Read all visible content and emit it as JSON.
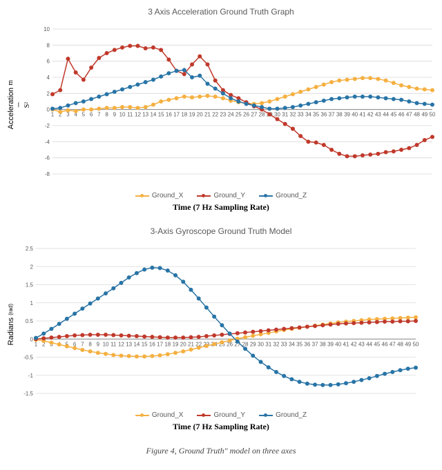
{
  "chart1": {
    "type": "line",
    "title": "3 Axis Acceleration Ground Truth Graph",
    "ylabel_html": "Acceleration <span style='font-family:serif'><sup>m</sup>&frasl;<sub>S<sup>2</sup></sub></span>",
    "ylabel": "Acceleration m/S²",
    "xlabel": "Time (7 Hz Sampling Rate)",
    "ylim": [
      -8,
      10
    ],
    "ytick_step": 2,
    "x_values": [
      1,
      2,
      3,
      4,
      5,
      6,
      7,
      8,
      9,
      10,
      11,
      12,
      13,
      14,
      15,
      16,
      17,
      18,
      19,
      20,
      21,
      22,
      23,
      24,
      25,
      26,
      27,
      28,
      29,
      30,
      31,
      32,
      33,
      34,
      35,
      36,
      37,
      38,
      39,
      40,
      41,
      42,
      43,
      44,
      45,
      46,
      47,
      48,
      49,
      50
    ],
    "series": [
      {
        "name": "Ground_X",
        "color": "#f5b041",
        "values": [
          0.0,
          -0.3,
          -0.1,
          -0.2,
          0.0,
          0.0,
          0.1,
          0.2,
          0.2,
          0.3,
          0.3,
          0.2,
          0.3,
          0.6,
          1.0,
          1.2,
          1.4,
          1.6,
          1.5,
          1.6,
          1.7,
          1.6,
          1.4,
          1.1,
          0.9,
          0.8,
          0.7,
          0.8,
          1.0,
          1.3,
          1.6,
          1.9,
          2.2,
          2.5,
          2.8,
          3.1,
          3.4,
          3.6,
          3.7,
          3.8,
          3.9,
          3.9,
          3.8,
          3.6,
          3.3,
          3.0,
          2.8,
          2.6,
          2.5,
          2.4
        ]
      },
      {
        "name": "Ground_Y",
        "color": "#c0392b",
        "values": [
          1.9,
          2.4,
          6.3,
          4.6,
          3.7,
          5.2,
          6.4,
          7.0,
          7.4,
          7.7,
          7.9,
          7.9,
          7.6,
          7.7,
          7.4,
          6.2,
          4.8,
          4.4,
          5.6,
          6.6,
          5.6,
          3.6,
          2.4,
          1.8,
          1.4,
          0.9,
          0.4,
          0.0,
          -0.6,
          -1.2,
          -1.8,
          -2.4,
          -3.3,
          -4.0,
          -4.1,
          -4.4,
          -5.0,
          -5.5,
          -5.8,
          -5.8,
          -5.7,
          -5.6,
          -5.5,
          -5.3,
          -5.2,
          -5.0,
          -4.8,
          -4.4,
          -3.8,
          -3.4
        ]
      },
      {
        "name": "Ground_Z",
        "color": "#2874a6",
        "values": [
          0.1,
          0.2,
          0.5,
          0.8,
          1.0,
          1.3,
          1.6,
          1.9,
          2.2,
          2.5,
          2.8,
          3.1,
          3.4,
          3.7,
          4.1,
          4.5,
          4.8,
          4.9,
          4.0,
          4.2,
          3.2,
          2.6,
          2.0,
          1.4,
          1.0,
          0.7,
          0.5,
          0.3,
          0.1,
          0.1,
          0.2,
          0.3,
          0.5,
          0.7,
          0.9,
          1.1,
          1.3,
          1.4,
          1.5,
          1.6,
          1.6,
          1.6,
          1.5,
          1.4,
          1.3,
          1.2,
          1.0,
          0.8,
          0.7,
          0.6
        ]
      }
    ],
    "marker_size": 3,
    "line_width": 1.5,
    "background_color": "#ffffff",
    "grid_color": "#d9d9d9",
    "axis_font_size": 8,
    "title_fontsize": 12,
    "label_fontsize": 11
  },
  "chart2": {
    "type": "line",
    "title": "3-Axis Gyroscope Ground Truth Model",
    "ylabel": "Radians (rad)",
    "xlabel": "Time (7 Hz Sampling Rate)",
    "ylim": [
      -1.5,
      2.5
    ],
    "ytick_step": 0.5,
    "x_values": [
      1,
      2,
      3,
      4,
      5,
      6,
      7,
      8,
      9,
      10,
      11,
      12,
      13,
      14,
      15,
      16,
      17,
      18,
      19,
      20,
      21,
      22,
      23,
      24,
      25,
      26,
      27,
      28,
      29,
      30,
      31,
      32,
      33,
      34,
      35,
      36,
      37,
      38,
      39,
      40,
      41,
      42,
      43,
      44,
      45,
      46,
      47,
      48,
      49,
      50
    ],
    "series": [
      {
        "name": "Ground_X",
        "color": "#f5b041",
        "values": [
          -0.02,
          -0.05,
          -0.1,
          -0.15,
          -0.2,
          -0.25,
          -0.3,
          -0.34,
          -0.38,
          -0.41,
          -0.44,
          -0.46,
          -0.47,
          -0.48,
          -0.48,
          -0.47,
          -0.45,
          -0.42,
          -0.38,
          -0.34,
          -0.29,
          -0.24,
          -0.19,
          -0.14,
          -0.09,
          -0.04,
          0.01,
          0.05,
          0.09,
          0.13,
          0.17,
          0.21,
          0.25,
          0.28,
          0.31,
          0.34,
          0.37,
          0.4,
          0.43,
          0.46,
          0.48,
          0.5,
          0.52,
          0.54,
          0.55,
          0.56,
          0.57,
          0.58,
          0.59,
          0.6
        ]
      },
      {
        "name": "Ground_Y",
        "color": "#c0392b",
        "values": [
          0.0,
          0.02,
          0.04,
          0.06,
          0.08,
          0.1,
          0.11,
          0.12,
          0.12,
          0.12,
          0.11,
          0.1,
          0.09,
          0.08,
          0.07,
          0.06,
          0.05,
          0.04,
          0.04,
          0.04,
          0.05,
          0.06,
          0.08,
          0.1,
          0.12,
          0.14,
          0.16,
          0.18,
          0.2,
          0.22,
          0.24,
          0.26,
          0.28,
          0.3,
          0.32,
          0.34,
          0.36,
          0.38,
          0.4,
          0.42,
          0.43,
          0.44,
          0.45,
          0.46,
          0.47,
          0.48,
          0.48,
          0.49,
          0.49,
          0.5
        ]
      },
      {
        "name": "Ground_Z",
        "color": "#2874a6",
        "values": [
          0.03,
          0.15,
          0.28,
          0.42,
          0.56,
          0.7,
          0.84,
          0.98,
          1.12,
          1.26,
          1.4,
          1.55,
          1.7,
          1.82,
          1.92,
          1.97,
          1.96,
          1.89,
          1.76,
          1.58,
          1.36,
          1.12,
          0.87,
          0.62,
          0.38,
          0.15,
          -0.07,
          -0.27,
          -0.46,
          -0.63,
          -0.78,
          -0.91,
          -1.02,
          -1.11,
          -1.18,
          -1.23,
          -1.26,
          -1.27,
          -1.27,
          -1.25,
          -1.22,
          -1.18,
          -1.13,
          -1.08,
          -1.02,
          -0.96,
          -0.91,
          -0.86,
          -0.82,
          -0.79
        ]
      }
    ],
    "marker_size": 3,
    "line_width": 1.5,
    "background_color": "#ffffff",
    "grid_color": "#d9d9d9",
    "axis_font_size": 8,
    "title_fontsize": 12,
    "label_fontsize": 11
  },
  "figure_caption": "Figure 4, Ground Truth\" model on three axes",
  "legend_labels": {
    "x": "Ground_X",
    "y": "Ground_Y",
    "z": "Ground_Z"
  }
}
